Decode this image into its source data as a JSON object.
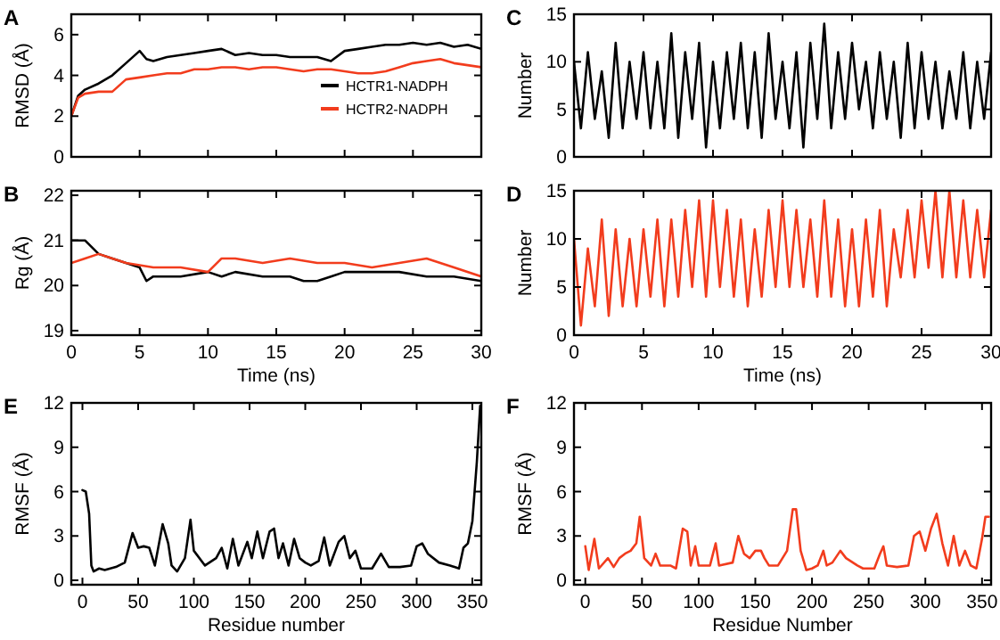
{
  "chart_data": [
    {
      "type": "line",
      "title": "A",
      "ylabel": "RMSD (Å)",
      "xlim": [
        0,
        30
      ],
      "xticks": [
        0,
        5,
        10,
        15,
        20,
        25,
        30
      ],
      "ylim": [
        0,
        7
      ],
      "yticks": [
        0,
        2,
        4,
        6
      ],
      "tick_labels": "y",
      "legend": "right",
      "series": [
        {
          "name": "HCTR1-NADPH",
          "color": "#000000",
          "x": [
            0,
            0.5,
            1,
            2,
            3,
            4,
            5,
            5.5,
            6,
            7,
            8,
            9,
            10,
            11,
            12,
            13,
            14,
            15,
            16,
            17,
            18,
            19,
            20,
            21,
            22,
            23,
            24,
            25,
            26,
            27,
            28,
            29,
            30
          ],
          "values": [
            2,
            3,
            3.3,
            3.6,
            4,
            4.6,
            5.2,
            4.8,
            4.7,
            4.9,
            5,
            5.1,
            5.2,
            5.3,
            5,
            5.1,
            5,
            5,
            4.9,
            4.9,
            4.9,
            4.7,
            5.2,
            5.3,
            5.4,
            5.5,
            5.5,
            5.6,
            5.5,
            5.6,
            5.4,
            5.5,
            5.3
          ]
        },
        {
          "name": "HCTR2-NADPH",
          "color": "#f23c1d",
          "x": [
            0,
            0.5,
            1,
            2,
            3,
            4,
            5,
            6,
            7,
            8,
            9,
            10,
            11,
            12,
            13,
            14,
            15,
            16,
            17,
            18,
            19,
            20,
            21,
            22,
            23,
            24,
            25,
            26,
            27,
            28,
            29,
            30
          ],
          "values": [
            2,
            2.9,
            3.1,
            3.2,
            3.2,
            3.8,
            3.9,
            4,
            4.1,
            4.1,
            4.3,
            4.3,
            4.4,
            4.4,
            4.3,
            4.4,
            4.4,
            4.3,
            4.2,
            4.3,
            4.3,
            4.2,
            4.1,
            4.1,
            4.2,
            4.4,
            4.6,
            4.7,
            4.8,
            4.6,
            4.5,
            4.4
          ]
        }
      ]
    },
    {
      "type": "line",
      "title": "C",
      "ylabel": "Number",
      "xlim": [
        0,
        30
      ],
      "xticks": [
        0,
        5,
        10,
        15,
        20,
        25,
        30
      ],
      "ylim": [
        0,
        15
      ],
      "yticks": [
        0,
        5,
        10,
        15
      ],
      "tick_labels": "y",
      "series": [
        {
          "color": "#000000",
          "x": [
            0,
            0.5,
            1,
            1.5,
            2,
            2.5,
            3,
            3.5,
            4,
            4.5,
            5,
            5.5,
            6,
            6.5,
            7,
            7.5,
            8,
            8.5,
            9,
            9.5,
            10,
            10.5,
            11,
            11.5,
            12,
            12.5,
            13,
            13.5,
            14,
            14.5,
            15,
            15.5,
            16,
            16.5,
            17,
            17.5,
            18,
            18.5,
            19,
            19.5,
            20,
            20.5,
            21,
            21.5,
            22,
            22.5,
            23,
            23.5,
            24,
            24.5,
            25,
            25.5,
            26,
            26.5,
            27,
            27.5,
            28,
            28.5,
            29,
            29.5,
            30
          ],
          "values": [
            10,
            3,
            11,
            4,
            9,
            2,
            12,
            3,
            10,
            4,
            11,
            3,
            10,
            3,
            13,
            2,
            11,
            4,
            12,
            1,
            10,
            3,
            11,
            4,
            12,
            3,
            11,
            2,
            13,
            4,
            10,
            3,
            11,
            1,
            12,
            4,
            14,
            3,
            11,
            4,
            12,
            5,
            10,
            3,
            11,
            4,
            10,
            2,
            12,
            3,
            11,
            4,
            10,
            3,
            9,
            4,
            11,
            3,
            10,
            4,
            11
          ]
        }
      ]
    },
    {
      "type": "line",
      "title": "B",
      "ylabel": "Rg (Å)",
      "xlabel": "Time (ns)",
      "xlim": [
        0,
        30
      ],
      "xticks": [
        0,
        5,
        10,
        15,
        20,
        25,
        30
      ],
      "ylim": [
        18.9,
        22.1
      ],
      "yticks": [
        19,
        20,
        21,
        22
      ],
      "series": [
        {
          "color": "#000000",
          "x": [
            0,
            1,
            2,
            3,
            4,
            5,
            5.5,
            6,
            8,
            10,
            11,
            12,
            14,
            16,
            17,
            18,
            19,
            20,
            22,
            24,
            26,
            28,
            30
          ],
          "values": [
            21,
            21,
            20.7,
            20.6,
            20.5,
            20.4,
            20.1,
            20.2,
            20.2,
            20.3,
            20.2,
            20.3,
            20.2,
            20.2,
            20.1,
            20.1,
            20.2,
            20.3,
            20.3,
            20.3,
            20.2,
            20.2,
            20.1
          ]
        },
        {
          "color": "#f23c1d",
          "x": [
            0,
            1,
            2,
            3,
            4,
            6,
            8,
            10,
            11,
            12,
            14,
            16,
            18,
            20,
            22,
            24,
            26,
            28,
            30
          ],
          "values": [
            20.5,
            20.6,
            20.7,
            20.6,
            20.5,
            20.4,
            20.4,
            20.3,
            20.6,
            20.6,
            20.5,
            20.6,
            20.5,
            20.5,
            20.4,
            20.5,
            20.6,
            20.4,
            20.2
          ]
        }
      ]
    },
    {
      "type": "line",
      "title": "D",
      "ylabel": "Number",
      "xlabel": "Time (ns)",
      "xlim": [
        0,
        30
      ],
      "xticks": [
        0,
        5,
        10,
        15,
        20,
        25,
        30
      ],
      "ylim": [
        0,
        15
      ],
      "yticks": [
        0,
        5,
        10,
        15
      ],
      "series": [
        {
          "color": "#f23c1d",
          "x": [
            0,
            0.5,
            1,
            1.5,
            2,
            2.5,
            3,
            3.5,
            4,
            4.5,
            5,
            5.5,
            6,
            6.5,
            7,
            7.5,
            8,
            8.5,
            9,
            9.5,
            10,
            10.5,
            11,
            11.5,
            12,
            12.5,
            13,
            13.5,
            14,
            14.5,
            15,
            15.5,
            16,
            16.5,
            17,
            17.5,
            18,
            18.5,
            19,
            19.5,
            20,
            20.5,
            21,
            21.5,
            22,
            22.5,
            23,
            23.5,
            24,
            24.5,
            25,
            25.5,
            26,
            26.5,
            27,
            27.5,
            28,
            28.5,
            29,
            29.5,
            30
          ],
          "values": [
            10,
            1,
            9,
            3,
            12,
            2,
            11,
            3,
            10,
            3,
            11,
            4,
            12,
            3,
            12,
            4,
            13,
            5,
            14,
            4,
            14,
            5,
            13,
            4,
            12,
            3,
            11,
            4,
            13,
            5,
            14,
            5,
            13,
            5,
            12,
            4,
            14,
            4,
            12,
            3,
            11,
            3,
            12,
            4,
            13,
            3,
            11,
            6,
            13,
            6,
            14,
            7,
            15,
            6,
            15,
            6,
            14,
            6,
            13,
            6,
            13
          ]
        }
      ]
    },
    {
      "type": "line",
      "title": "E",
      "ylabel": "RMSF (Å)",
      "xlabel": "Residue number",
      "xlim": [
        -10,
        358
      ],
      "xticks": [
        0,
        50,
        100,
        150,
        200,
        250,
        300,
        350
      ],
      "ylim": [
        -0.3,
        12
      ],
      "yticks": [
        0,
        3,
        6,
        9,
        12
      ],
      "series": [
        {
          "color": "#000000",
          "x": [
            0,
            3,
            6,
            8,
            10,
            15,
            20,
            30,
            38,
            45,
            50,
            55,
            60,
            65,
            72,
            77,
            80,
            85,
            92,
            97,
            100,
            110,
            120,
            125,
            130,
            135,
            140,
            148,
            152,
            157,
            162,
            168,
            172,
            176,
            180,
            185,
            190,
            195,
            200,
            205,
            212,
            217,
            222,
            230,
            235,
            240,
            245,
            250,
            260,
            268,
            275,
            285,
            295,
            300,
            305,
            310,
            320,
            330,
            338,
            342,
            346,
            350,
            354,
            357
          ],
          "values": [
            6.1,
            6,
            4.5,
            1,
            0.6,
            0.8,
            0.7,
            0.9,
            1.2,
            3.2,
            2.2,
            2.3,
            2.2,
            1,
            3.8,
            2.5,
            1,
            0.6,
            1.5,
            4.1,
            2,
            1,
            1.5,
            2.2,
            0.8,
            2.8,
            1,
            2.6,
            1.5,
            3.3,
            1.5,
            3.3,
            3.5,
            1.5,
            2.5,
            1,
            2.8,
            1.5,
            1.2,
            1,
            1.3,
            2.9,
            1,
            2.6,
            3,
            1.5,
            2,
            0.8,
            0.8,
            1.8,
            0.9,
            0.9,
            1,
            2.3,
            2.5,
            1.8,
            1.2,
            1,
            0.8,
            2.2,
            2.5,
            4,
            8,
            11.8
          ]
        }
      ]
    },
    {
      "type": "line",
      "title": "F",
      "ylabel": "RMSF (Å)",
      "xlabel": "Residue Number",
      "xlim": [
        -10,
        358
      ],
      "xticks": [
        0,
        50,
        100,
        150,
        200,
        250,
        300,
        350
      ],
      "ylim": [
        -0.3,
        12
      ],
      "yticks": [
        0,
        3,
        6,
        9,
        12
      ],
      "series": [
        {
          "color": "#f23c1d",
          "x": [
            0,
            3,
            8,
            12,
            20,
            25,
            30,
            35,
            40,
            45,
            48,
            52,
            58,
            62,
            66,
            75,
            80,
            86,
            90,
            93,
            97,
            100,
            110,
            115,
            118,
            130,
            135,
            140,
            145,
            150,
            155,
            158,
            162,
            170,
            178,
            183,
            186,
            190,
            195,
            200,
            205,
            210,
            213,
            218,
            225,
            230,
            240,
            245,
            255,
            260,
            263,
            266,
            275,
            285,
            290,
            295,
            300,
            305,
            310,
            315,
            320,
            325,
            330,
            335,
            340,
            345,
            350,
            353,
            356
          ],
          "values": [
            2.3,
            0.7,
            2.8,
            0.8,
            1.5,
            0.9,
            1.5,
            1.8,
            2,
            2.5,
            4.3,
            1.5,
            1,
            1.8,
            1,
            1,
            0.8,
            3.5,
            3.3,
            1,
            2.3,
            1,
            1,
            2.5,
            1,
            1.2,
            3,
            1.8,
            1.5,
            2,
            2,
            1.5,
            1,
            1,
            2,
            4.8,
            4.8,
            2,
            0.7,
            0.8,
            1,
            2,
            1,
            1.2,
            2,
            1.5,
            1,
            0.8,
            0.8,
            1.8,
            2.3,
            1,
            0.9,
            1,
            3,
            3.3,
            2,
            3.5,
            4.5,
            2.5,
            1,
            3,
            1,
            2,
            1,
            0.8,
            2.8,
            4.3,
            4.3
          ]
        }
      ]
    }
  ]
}
